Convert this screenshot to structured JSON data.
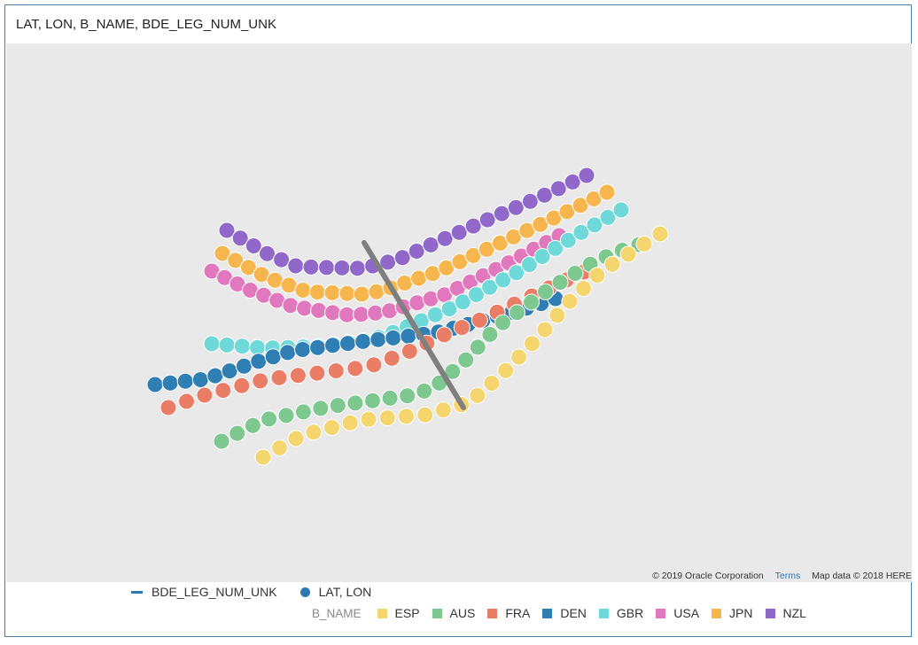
{
  "panel": {
    "title": "LAT, LON, B_NAME, BDE_LEG_NUM_UNK"
  },
  "map": {
    "background_color": "#e9e9e9",
    "attribution": {
      "copyright": "© 2019 Oracle Corporation",
      "terms": "Terms",
      "map_data": "Map data © 2018 HERE"
    }
  },
  "legend": {
    "line_label": "BDE_LEG_NUM_UNK",
    "point_label": "LAT, LON",
    "line_color": "#2a7ab0",
    "point_color": "#2a7ab0",
    "color_key_title": "B_NAME",
    "categories": [
      {
        "label": "ESP",
        "color": "#f5d56e"
      },
      {
        "label": "AUS",
        "color": "#7cc88f"
      },
      {
        "label": "FRA",
        "color": "#ea7d66"
      },
      {
        "label": "DEN",
        "color": "#2f7fb5"
      },
      {
        "label": "GBR",
        "color": "#6ed9d8"
      },
      {
        "label": "USA",
        "color": "#e177bc"
      },
      {
        "label": "JPN",
        "color": "#f7b54e"
      },
      {
        "label": "NZL",
        "color": "#8f68c9"
      }
    ]
  },
  "track_line_color": "#7f7f7f"
}
